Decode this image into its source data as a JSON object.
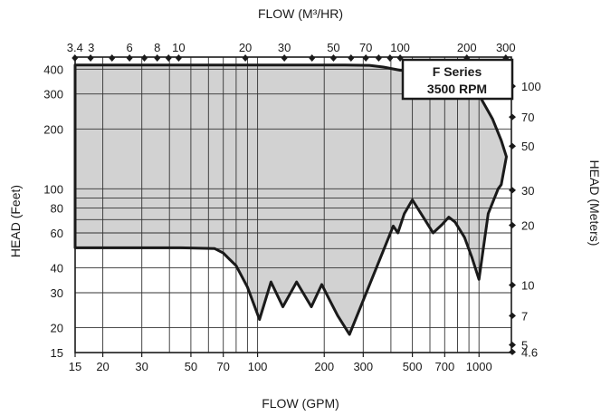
{
  "chart_data": {
    "type": "area",
    "title": "",
    "top_axis_title": "FLOW (M³/HR)",
    "bottom_axis_title": "FLOW (GPM)",
    "left_axis_title": "HEAD (Feet)",
    "right_axis_title": "HEAD (Meters)",
    "legend": {
      "line1": "F Series",
      "line2": "3500 RPM",
      "placement": "top-right"
    },
    "x_scale": "log",
    "y_scale": "log",
    "xlim_gpm": [
      15,
      1400
    ],
    "ylim_feet": [
      15,
      460
    ],
    "grid": true,
    "x_ticks_gpm": [
      {
        "v": 15,
        "label": "15"
      },
      {
        "v": 20,
        "label": "20"
      },
      {
        "v": 30,
        "label": "30"
      },
      {
        "v": 50,
        "label": "50"
      },
      {
        "v": 70,
        "label": "70"
      },
      {
        "v": 100,
        "label": "100"
      },
      {
        "v": 200,
        "label": "200"
      },
      {
        "v": 300,
        "label": "300"
      },
      {
        "v": 500,
        "label": "500"
      },
      {
        "v": 700,
        "label": "700"
      },
      {
        "v": 1000,
        "label": "1000"
      }
    ],
    "x_ticks_m3hr": [
      {
        "v": 3.4,
        "label": "3.4"
      },
      {
        "v": 4,
        "label": ""
      },
      {
        "v": 5,
        "label": ""
      },
      {
        "v": 6,
        "label": "6"
      },
      {
        "v": 7,
        "label": ""
      },
      {
        "v": 8,
        "label": "8"
      },
      {
        "v": 9,
        "label": ""
      },
      {
        "v": 10,
        "label": "10"
      },
      {
        "v": 20,
        "label": "20"
      },
      {
        "v": 30,
        "label": "30"
      },
      {
        "v": 40,
        "label": ""
      },
      {
        "v": 50,
        "label": "50"
      },
      {
        "v": 60,
        "label": ""
      },
      {
        "v": 70,
        "label": "70"
      },
      {
        "v": 80,
        "label": ""
      },
      {
        "v": 90,
        "label": ""
      },
      {
        "v": 100,
        "label": "100"
      },
      {
        "v": 200,
        "label": "200"
      },
      {
        "v": 300,
        "label": "300"
      }
    ],
    "extra_top_label": {
      "label": "3",
      "near_m3hr": 3.4
    },
    "y_ticks_feet": [
      {
        "v": 15,
        "label": "15"
      },
      {
        "v": 20,
        "label": "20"
      },
      {
        "v": 30,
        "label": "30"
      },
      {
        "v": 40,
        "label": "40"
      },
      {
        "v": 60,
        "label": "60"
      },
      {
        "v": 80,
        "label": "80"
      },
      {
        "v": 100,
        "label": "100"
      },
      {
        "v": 200,
        "label": "200"
      },
      {
        "v": 300,
        "label": "300"
      },
      {
        "v": 400,
        "label": "400"
      }
    ],
    "y_ticks_meters": [
      {
        "v": 4.6,
        "label": "4.6"
      },
      {
        "v": 5,
        "label": "5"
      },
      {
        "v": 7,
        "label": "7"
      },
      {
        "v": 10,
        "label": "10"
      },
      {
        "v": 20,
        "label": "20"
      },
      {
        "v": 30,
        "label": "30"
      },
      {
        "v": 50,
        "label": "50"
      },
      {
        "v": 70,
        "label": "70"
      },
      {
        "v": 100,
        "label": "100"
      }
    ],
    "x_gridlines_gpm": [
      20,
      30,
      40,
      50,
      60,
      70,
      80,
      90,
      100,
      200,
      300,
      400,
      500,
      600,
      700,
      800,
      900,
      1000
    ],
    "y_gridlines_feet": [
      20,
      30,
      40,
      50,
      60,
      70,
      80,
      90,
      100,
      200,
      300,
      400
    ],
    "envelope_gpm_feet": [
      [
        15,
        420
      ],
      [
        45,
        420
      ],
      [
        130,
        420
      ],
      [
        240,
        420
      ],
      [
        320,
        418
      ],
      [
        370,
        410
      ],
      [
        440,
        395
      ],
      [
        520,
        390
      ],
      [
        620,
        385
      ],
      [
        760,
        370
      ],
      [
        900,
        335
      ],
      [
        1020,
        285
      ],
      [
        1150,
        225
      ],
      [
        1260,
        175
      ],
      [
        1330,
        145
      ],
      [
        1260,
        105
      ],
      [
        1220,
        100
      ],
      [
        1100,
        75
      ],
      [
        1000,
        35
      ],
      [
        930,
        45
      ],
      [
        860,
        57
      ],
      [
        780,
        68
      ],
      [
        730,
        72
      ],
      [
        680,
        66
      ],
      [
        620,
        60
      ],
      [
        560,
        72
      ],
      [
        500,
        88
      ],
      [
        460,
        75
      ],
      [
        430,
        60
      ],
      [
        410,
        65
      ],
      [
        260,
        18.5
      ],
      [
        230,
        23
      ],
      [
        210,
        28
      ],
      [
        195,
        33
      ],
      [
        175,
        25.5
      ],
      [
        150,
        34
      ],
      [
        130,
        25.5
      ],
      [
        115,
        34
      ],
      [
        102,
        22
      ],
      [
        90,
        32
      ],
      [
        80,
        41
      ],
      [
        75,
        44
      ],
      [
        70,
        47.5
      ],
      [
        64,
        50
      ],
      [
        45,
        50.5
      ],
      [
        15,
        50.5
      ]
    ]
  }
}
